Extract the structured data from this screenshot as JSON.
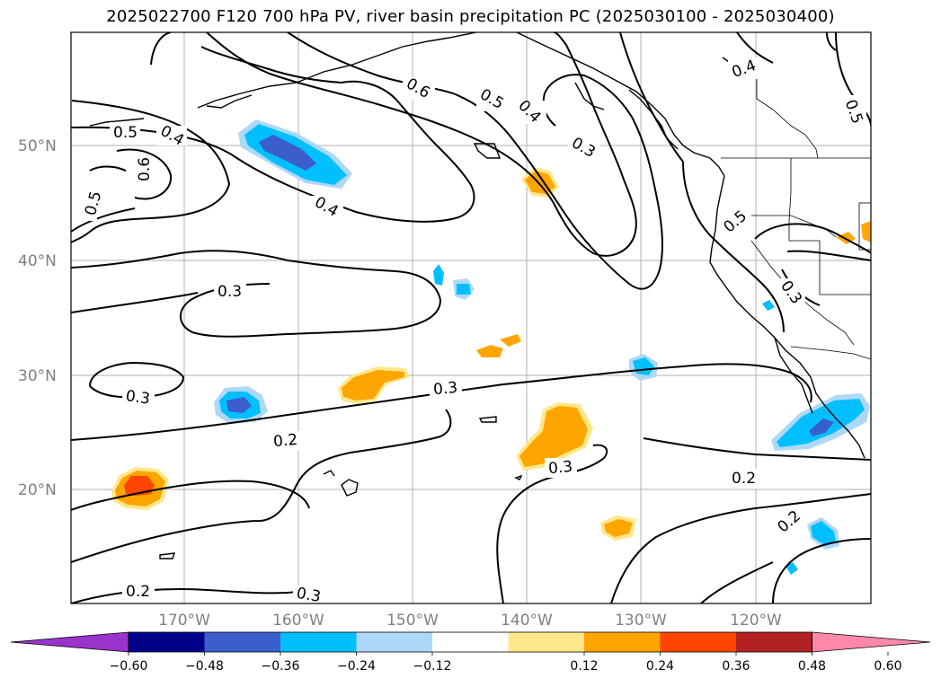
{
  "title": "2025022700 F120 700 hPa PV, river basin precipitation PC (2025030100 - 2025030400)",
  "map": {
    "lat_ticks": [
      "50°N",
      "40°N",
      "30°N",
      "20°N"
    ],
    "lon_ticks": [
      "170°W",
      "160°W",
      "150°W",
      "140°W",
      "130°W",
      "120°W"
    ],
    "contour_labels": [
      "0.5",
      "0.4",
      "0.6",
      "0.5",
      "0.6",
      "0.5",
      "0.4",
      "0.3",
      "0.4",
      "0.5",
      "0.5",
      "0.4",
      "0.3",
      "0.3",
      "0.3",
      "0.3",
      "0.2",
      "0.3",
      "0.2",
      "0.2",
      "0.2",
      "0.3"
    ]
  },
  "colorbar": {
    "ticks": [
      "−0.60",
      "−0.48",
      "−0.36",
      "−0.24",
      "−0.12",
      "0.12",
      "0.24",
      "0.36",
      "0.48",
      "0.60"
    ],
    "colors": [
      "#9933cc",
      "#00008b",
      "#3a5fcd",
      "#00bfff",
      "#add8f7",
      "#ffffff",
      "#ffe88a",
      "#ffa500",
      "#ff4500",
      "#b22222",
      "#ff88aa"
    ]
  }
}
